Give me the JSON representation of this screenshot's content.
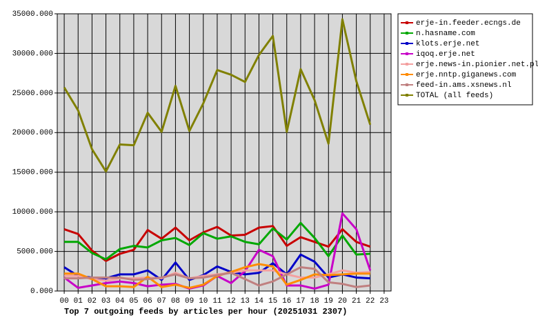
{
  "chart_data": {
    "type": "line",
    "title": "Top 7 outgoing feeds by articles per hour (20251031 2307)",
    "categories": [
      "00",
      "01",
      "02",
      "03",
      "04",
      "05",
      "06",
      "07",
      "08",
      "09",
      "10",
      "11",
      "12",
      "13",
      "14",
      "15",
      "16",
      "17",
      "18",
      "19",
      "20",
      "21",
      "22",
      "23"
    ],
    "ylim": [
      0,
      35000
    ],
    "yticks": [
      {
        "value": 0,
        "label": "0.000"
      },
      {
        "value": 5000,
        "label": "5000.000"
      },
      {
        "value": 10000,
        "label": "10000.000"
      },
      {
        "value": 15000,
        "label": "15000.000"
      },
      {
        "value": 20000,
        "label": "20000.000"
      },
      {
        "value": 25000,
        "label": "25000.000"
      },
      {
        "value": 30000,
        "label": "30000.000"
      },
      {
        "value": 35000,
        "label": "35000.000"
      }
    ],
    "grid": true,
    "legend": "right",
    "series": [
      {
        "name": "erje-in.feeder.ecngs.de",
        "color": "#c80000",
        "values": [
          7800,
          7200,
          5100,
          3800,
          4700,
          5200,
          7700,
          6600,
          8000,
          6400,
          7400,
          8100,
          7000,
          7100,
          8000,
          8200,
          5700,
          6800,
          6200,
          5600,
          7800,
          6200,
          5600,
          null
        ]
      },
      {
        "name": "n.hasname.com",
        "color": "#00a800",
        "values": [
          6200,
          6200,
          4800,
          4000,
          5300,
          5700,
          5500,
          6400,
          6700,
          5800,
          7300,
          6600,
          6900,
          6200,
          5900,
          7900,
          6500,
          8600,
          6700,
          4400,
          7000,
          4600,
          4700,
          null
        ]
      },
      {
        "name": "klots.erje.net",
        "color": "#0000c8",
        "values": [
          3000,
          1900,
          1700,
          1600,
          2100,
          2100,
          2600,
          1400,
          3600,
          1400,
          2000,
          3100,
          2400,
          2100,
          2300,
          3500,
          2100,
          4600,
          3700,
          1700,
          2100,
          1700,
          1600,
          null
        ]
      },
      {
        "name": "iqoq.erje.net",
        "color": "#c800c8",
        "values": [
          1700,
          400,
          700,
          1000,
          1200,
          1000,
          600,
          800,
          900,
          300,
          700,
          1900,
          1000,
          2500,
          5200,
          4400,
          700,
          700,
          300,
          800,
          9800,
          7800,
          2600,
          null
        ]
      },
      {
        "name": "erje.news-in.pionier.net.pl",
        "color": "#f4a0a0",
        "values": [
          1900,
          1900,
          1500,
          1300,
          1600,
          1600,
          1700,
          1600,
          2300,
          1600,
          1900,
          2100,
          2300,
          2600,
          2600,
          2600,
          2100,
          1700,
          1700,
          2100,
          2600,
          2300,
          2400,
          null
        ]
      },
      {
        "name": "erje.nntp.giganews.com",
        "color": "#ff8c00",
        "values": [
          2200,
          2200,
          1500,
          600,
          600,
          500,
          1800,
          500,
          800,
          400,
          800,
          1900,
          2400,
          3000,
          3400,
          3100,
          800,
          1400,
          2100,
          2000,
          2100,
          2200,
          2200,
          null
        ]
      },
      {
        "name": "feed-in.ams.xsnews.nl",
        "color": "#c08080",
        "values": [
          1600,
          1600,
          1700,
          1700,
          1700,
          1400,
          1500,
          1700,
          2100,
          1600,
          1700,
          2000,
          2300,
          1500,
          700,
          1200,
          2100,
          3000,
          2800,
          1100,
          900,
          500,
          700,
          null
        ]
      },
      {
        "name": "TOTAL (all feeds)",
        "color": "#808000",
        "values": [
          25700,
          22800,
          17900,
          15100,
          18500,
          18400,
          22500,
          20100,
          25900,
          20200,
          23700,
          27900,
          27300,
          26400,
          29800,
          32200,
          20100,
          28000,
          24100,
          18600,
          34300,
          26500,
          21000,
          null
        ]
      }
    ]
  }
}
